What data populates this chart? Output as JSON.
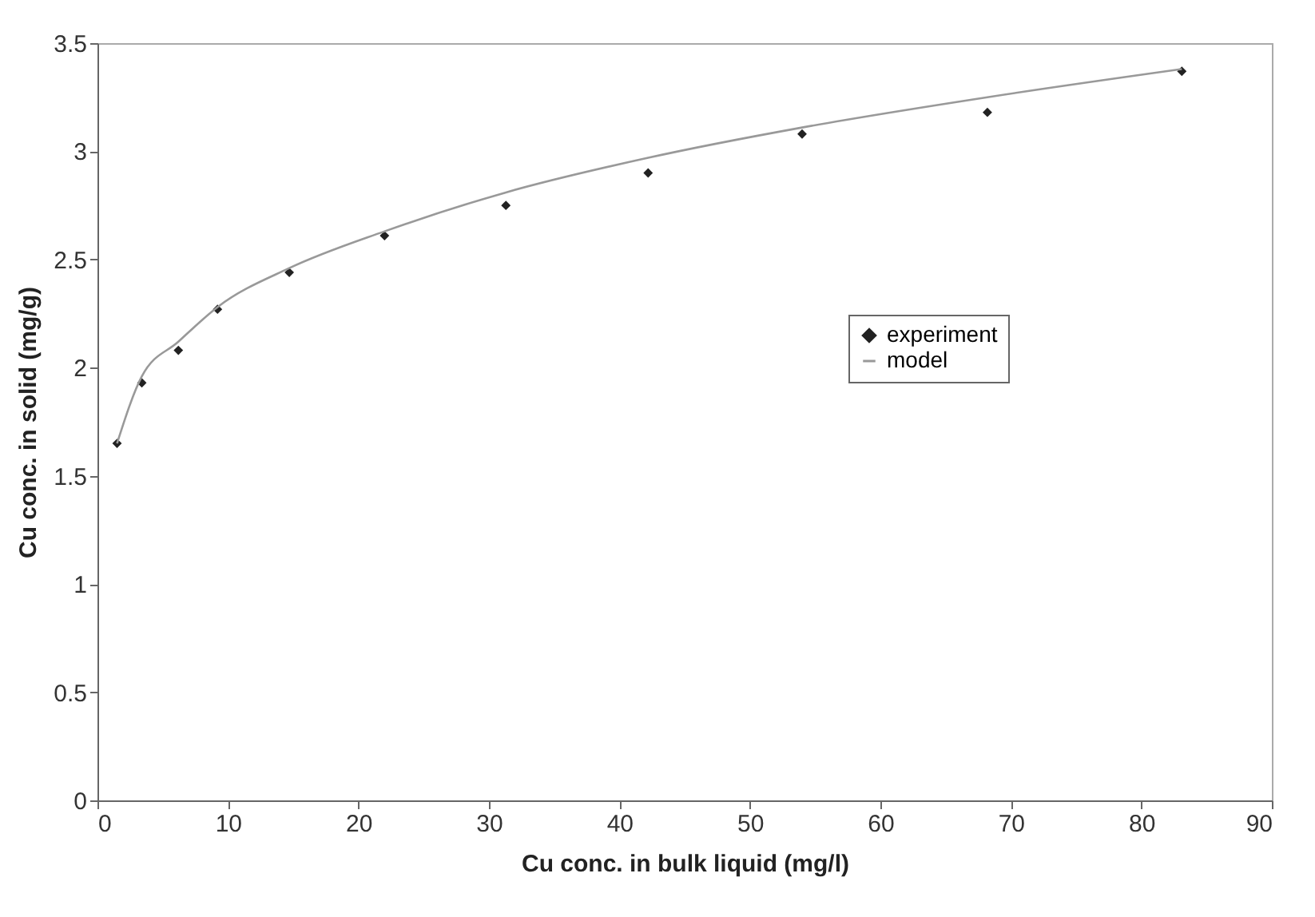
{
  "chart_data": {
    "type": "scatter",
    "xlabel": "Cu conc.  in bulk liquid (mg/l)",
    "ylabel": "Cu conc. in solid (mg/g)",
    "xlim": [
      0,
      90
    ],
    "xticks": [
      0,
      10,
      20,
      30,
      40,
      50,
      60,
      70,
      80,
      90
    ],
    "ylim": [
      0,
      3.5
    ],
    "yticks": [
      0,
      0.5,
      1,
      1.5,
      2,
      2.5,
      3,
      3.5
    ],
    "grid": false,
    "legend": "right",
    "series": [
      {
        "name": "experiment",
        "marker": "diamond",
        "color": "#222222",
        "x": [
          1.5,
          3.4,
          6.2,
          9.2,
          14.7,
          22,
          31.3,
          42.2,
          54,
          68.2,
          83.1
        ],
        "values": [
          1.65,
          1.93,
          2.08,
          2.27,
          2.44,
          2.61,
          2.75,
          2.9,
          3.08,
          3.18,
          3.37
        ]
      },
      {
        "name": "model",
        "type": "line",
        "color": "#999999",
        "line_style": "solid",
        "x": [
          1.5,
          3.4,
          6.2,
          9.2,
          14.7,
          22,
          31.3,
          42.2,
          54,
          68.2,
          83.1
        ],
        "values": [
          1.65,
          1.96,
          2.12,
          2.28,
          2.46,
          2.63,
          2.81,
          2.97,
          3.11,
          3.25,
          3.38
        ]
      }
    ]
  }
}
